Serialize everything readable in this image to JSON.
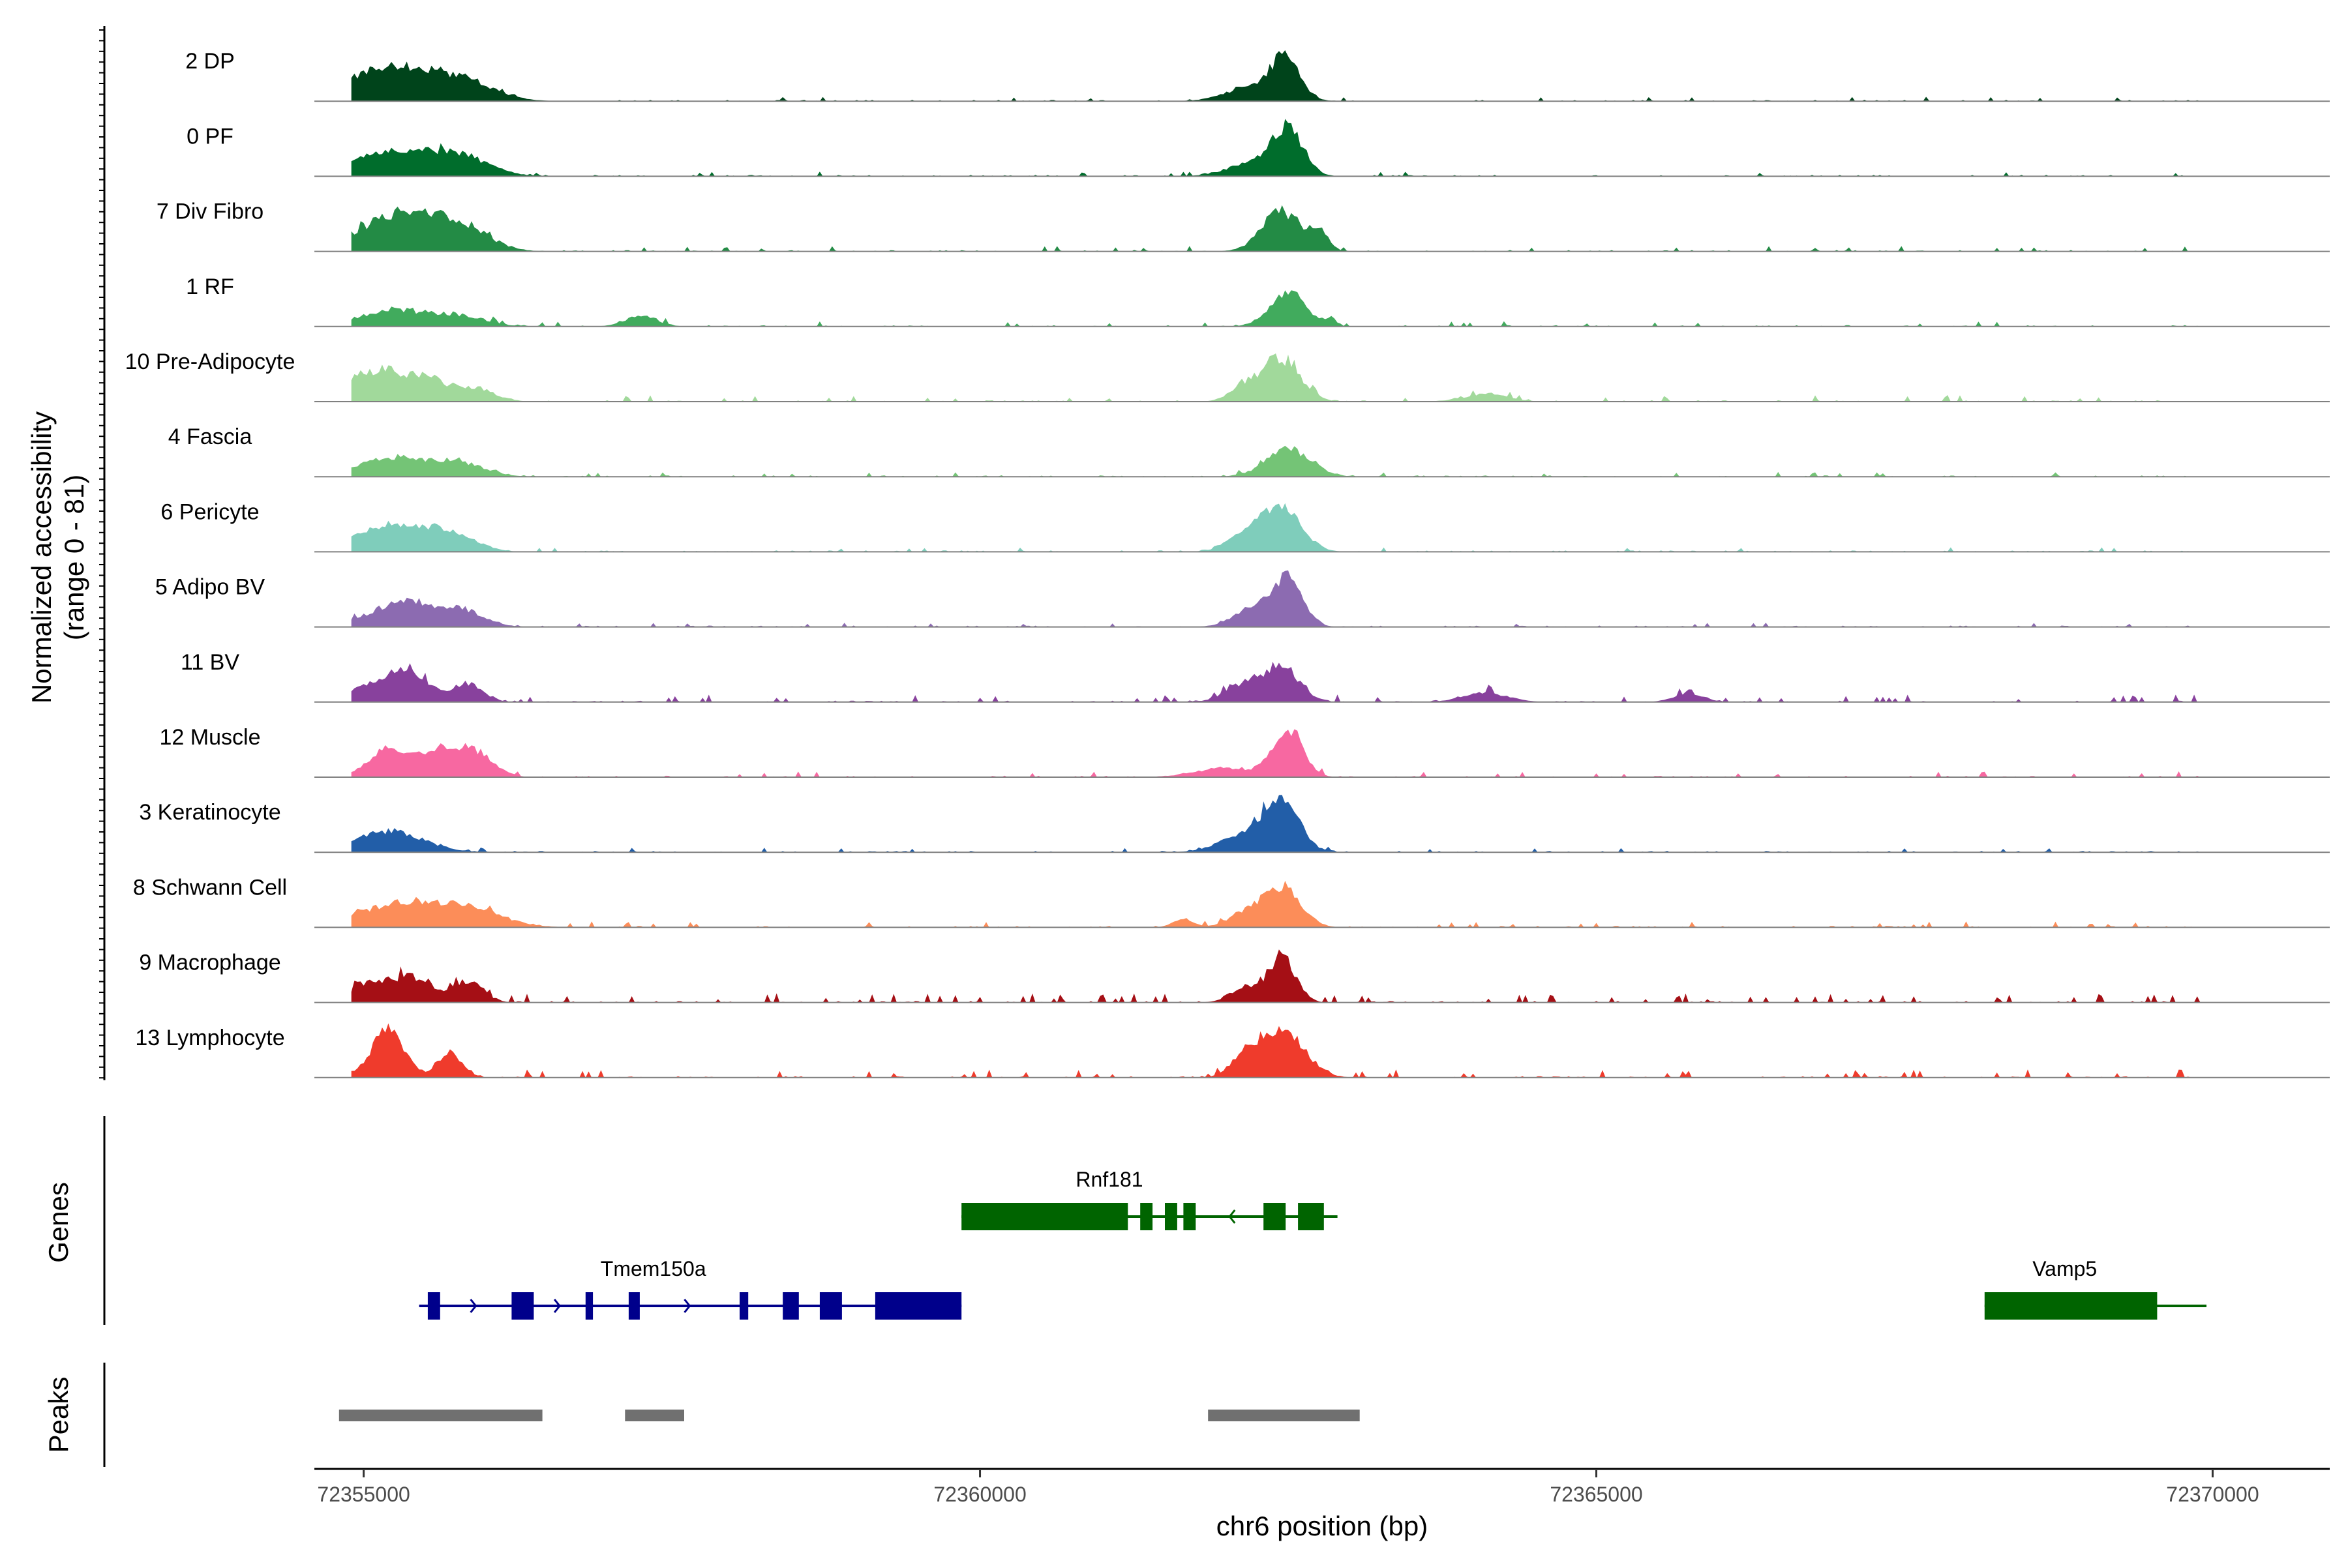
{
  "chart_data": {
    "type": "area",
    "title": "",
    "chromosome": "chr6",
    "xlabel": "chr6 position (bp)",
    "ylabel": "Normalized accessibility",
    "ylabel_range": "(range 0 - 81)",
    "xlim": [
      72354600,
      72370950
    ],
    "ylim": [
      0,
      81
    ],
    "x_ticks": [
      72355000,
      72360000,
      72365000,
      72370000
    ],
    "x_tick_labels": [
      "72355000",
      "72360000",
      "72365000",
      "72370000"
    ],
    "genes_label": "Genes",
    "peaks_label": "Peaks",
    "tracks": [
      {
        "name": "2 DP",
        "color": "#00441b",
        "peaks": [
          [
            72355200,
            55,
            330
          ],
          [
            72355800,
            30,
            260
          ],
          [
            72362480,
            62,
            110
          ],
          [
            72362250,
            26,
            220
          ]
        ],
        "extra": 0.2
      },
      {
        "name": "0 PF",
        "color": "#006d2c",
        "peaks": [
          [
            72355250,
            42,
            330
          ],
          [
            72355800,
            27,
            230
          ],
          [
            72362500,
            70,
            120
          ],
          [
            72362250,
            24,
            220
          ]
        ],
        "extra": 0.25
      },
      {
        "name": "7 Div Fibro",
        "color": "#238b45",
        "peaks": [
          [
            72355300,
            60,
            340
          ],
          [
            72355800,
            30,
            220
          ],
          [
            72362450,
            65,
            160
          ],
          [
            72362750,
            30,
            70
          ]
        ],
        "extra": 0.3
      },
      {
        "name": "1 RF",
        "color": "#41ab5d",
        "peaks": [
          [
            72355250,
            27,
            280
          ],
          [
            72355800,
            15,
            200
          ],
          [
            72357250,
            17,
            130
          ],
          [
            72362500,
            55,
            150
          ],
          [
            72362850,
            12,
            40
          ]
        ],
        "extra": 0.3
      },
      {
        "name": "10 Pre-Adipocyte",
        "color": "#a1d99b",
        "peaks": [
          [
            72355100,
            50,
            200
          ],
          [
            72355500,
            35,
            170
          ],
          [
            72355900,
            22,
            160
          ],
          [
            72362450,
            70,
            150
          ],
          [
            72362150,
            25,
            120
          ],
          [
            72364100,
            12,
            180
          ]
        ],
        "extra": 0.45
      },
      {
        "name": "4 Fascia",
        "color": "#74c476",
        "peaks": [
          [
            72355250,
            32,
            280
          ],
          [
            72355800,
            20,
            200
          ],
          [
            72362500,
            45,
            180
          ]
        ],
        "extra": 0.25
      },
      {
        "name": "6 Pericyte",
        "color": "#7fcdbb",
        "peaks": [
          [
            72355200,
            45,
            250
          ],
          [
            72355700,
            30,
            200
          ],
          [
            72362450,
            70,
            160
          ],
          [
            72362150,
            25,
            150
          ]
        ],
        "extra": 0.2
      },
      {
        "name": "5 Adipo BV",
        "color": "#8c6bb1",
        "peaks": [
          [
            72355300,
            40,
            250
          ],
          [
            72355800,
            25,
            180
          ],
          [
            72362500,
            80,
            120
          ],
          [
            72362200,
            30,
            150
          ]
        ],
        "extra": 0.2
      },
      {
        "name": "11 BV",
        "color": "#88419d",
        "peaks": [
          [
            72355350,
            55,
            170
          ],
          [
            72355000,
            20,
            150
          ],
          [
            72355850,
            30,
            120
          ],
          [
            72362450,
            55,
            140
          ],
          [
            72362150,
            30,
            150
          ],
          [
            72364100,
            15,
            180
          ],
          [
            72365750,
            15,
            120
          ]
        ],
        "extra": 0.55
      },
      {
        "name": "12 Muscle",
        "color": "#f768a1",
        "peaks": [
          [
            72355200,
            45,
            160
          ],
          [
            72355600,
            42,
            160
          ],
          [
            72355900,
            40,
            150
          ],
          [
            72362500,
            75,
            120
          ],
          [
            72362000,
            15,
            250
          ]
        ],
        "extra": 0.4
      },
      {
        "name": "3 Keratinocyte",
        "color": "#225ea8",
        "peaks": [
          [
            72355200,
            35,
            280
          ],
          [
            72362450,
            82,
            140
          ],
          [
            72362150,
            30,
            200
          ]
        ],
        "extra": 0.2
      },
      {
        "name": "8 Schwann Cell",
        "color": "#fc8d59",
        "peaks": [
          [
            72355350,
            40,
            380
          ],
          [
            72355900,
            20,
            260
          ],
          [
            72362450,
            65,
            150
          ],
          [
            72362150,
            22,
            140
          ],
          [
            72361650,
            15,
            80
          ]
        ],
        "extra": 0.4
      },
      {
        "name": "9 Macrophage",
        "color": "#a50f15",
        "peaks": [
          [
            72355400,
            40,
            160
          ],
          [
            72355050,
            30,
            150
          ],
          [
            72355850,
            35,
            120
          ],
          [
            72362450,
            75,
            110
          ],
          [
            72362150,
            25,
            120
          ]
        ],
        "extra": 0.75
      },
      {
        "name": "13 Lymphocyte",
        "color": "#ef3b2c",
        "peaks": [
          [
            72355200,
            80,
            130
          ],
          [
            72355700,
            40,
            100
          ],
          [
            72362450,
            78,
            180
          ],
          [
            72362150,
            28,
            120
          ]
        ],
        "extra": 0.65
      }
    ],
    "genes": [
      {
        "name": "Rnf181",
        "color": "#006400",
        "strand": "-",
        "start": 72359850,
        "end": 72362900,
        "exons": [
          [
            72359850,
            72361200
          ],
          [
            72361300,
            72361400
          ],
          [
            72361500,
            72361600
          ],
          [
            72361650,
            72361750
          ],
          [
            72362300,
            72362480
          ],
          [
            72362580,
            72362790
          ]
        ]
      },
      {
        "name": "Tmem150a",
        "color": "#00008b",
        "strand": "+",
        "start": 72355450,
        "end": 72359850,
        "exons": [
          [
            72355520,
            72355620
          ],
          [
            72356200,
            72356380
          ],
          [
            72356800,
            72356860
          ],
          [
            72357150,
            72357240
          ],
          [
            72358050,
            72358120
          ],
          [
            72358400,
            72358530
          ],
          [
            72358700,
            72358880
          ],
          [
            72359150,
            72359850
          ]
        ]
      },
      {
        "name": "Vamp5",
        "color": "#006400",
        "strand": "+",
        "start": 72368150,
        "end": 72369950,
        "exons": [
          [
            72368150,
            72369550
          ]
        ]
      }
    ],
    "peaks": [
      [
        72354800,
        72356450
      ],
      [
        72357120,
        72357600
      ],
      [
        72361850,
        72363080
      ]
    ]
  }
}
